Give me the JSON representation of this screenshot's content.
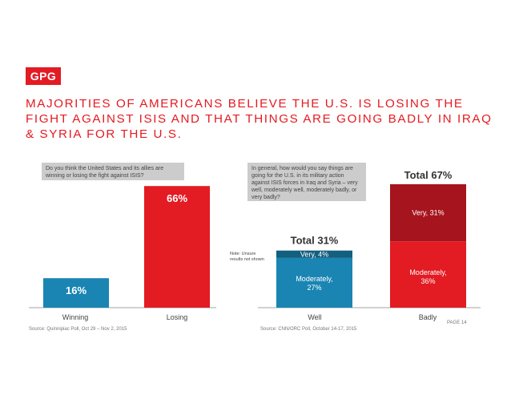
{
  "logo": "GPG",
  "title": "MAJORITIES OF AMERICANS BELIEVE THE U.S. IS LOSING THE FIGHT AGAINST ISIS AND THAT THINGS ARE GOING BADLY IN IRAQ & SYRIA FOR THE U.S.",
  "page": "PAGE 14",
  "colors": {
    "red": "#e31b23",
    "dark_red": "#a6141d",
    "blue": "#1a85b3",
    "dark_blue": "#135f7f",
    "gray_box": "#cccccc"
  },
  "chart_data": [
    {
      "type": "bar",
      "question": "Do you think the United States and its allies are winning or losing the fight against ISIS?",
      "categories": [
        "Winning",
        "Losing"
      ],
      "values": [
        16,
        66
      ],
      "labels": [
        "16%",
        "66%"
      ],
      "source": "Source: Quinnipiac Poll, Oct 29 – Nov 2, 2015"
    },
    {
      "type": "bar",
      "stacked": true,
      "question": "In general, how would you say things are going for the U.S. in its military action against ISIS forces in Iraq and Syria – very well, moderately well, moderately badly, or very badly?",
      "categories": [
        "Well",
        "Badly"
      ],
      "segments": [
        {
          "category": "Well",
          "values": [
            27,
            4
          ],
          "labels": [
            "Moderately, 27%",
            "Very, 4%"
          ]
        },
        {
          "category": "Badly",
          "values": [
            36,
            31
          ],
          "labels": [
            "Moderately, 36%",
            "Very, 31%"
          ]
        }
      ],
      "totals": [
        "Total 31%",
        "Total 67%"
      ],
      "note": "Note: Unsure results not shown",
      "source": "Source: CNN/ORC Poll, October 14-17, 2015"
    }
  ]
}
